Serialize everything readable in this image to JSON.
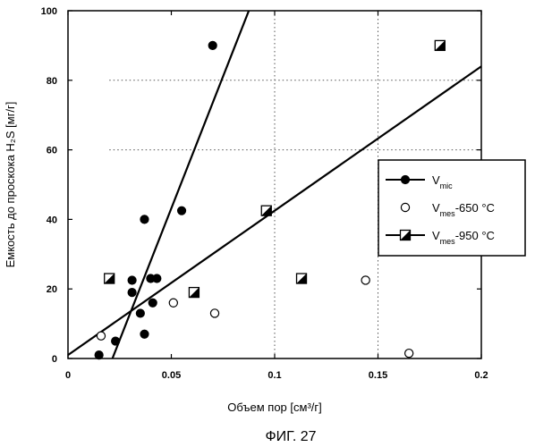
{
  "chart_data": {
    "type": "scatter",
    "xlabel": "Объем пор [см³/г]",
    "ylabel": "Емкость до проскока H₂S [мг/г]",
    "xlim": [
      0,
      0.2
    ],
    "ylim": [
      0,
      100
    ],
    "x_ticks": [
      "0",
      "0.05",
      "0.1",
      "0.15",
      "0.2"
    ],
    "y_ticks": [
      "0",
      "20",
      "40",
      "60",
      "80",
      "100"
    ],
    "grid": "dotted, x=0.1, x=0.15, y=60, y=80",
    "legend_position": "right",
    "legend": {
      "mic": {
        "main": "V",
        "sub": "mic",
        "suffix": ""
      },
      "mes650": {
        "main": "V",
        "sub": "mes",
        "suffix": "-650 °C"
      },
      "mes950": {
        "main": "V",
        "sub": "mes",
        "suffix": "-950 °C"
      }
    },
    "series": [
      {
        "key": "mic",
        "marker": "filled-circle",
        "points": [
          [
            0.015,
            1
          ],
          [
            0.023,
            5
          ],
          [
            0.031,
            22.5
          ],
          [
            0.031,
            19
          ],
          [
            0.035,
            13
          ],
          [
            0.037,
            40
          ],
          [
            0.037,
            7
          ],
          [
            0.04,
            23
          ],
          [
            0.041,
            16
          ],
          [
            0.043,
            23
          ],
          [
            0.055,
            42.5
          ],
          [
            0.07,
            90
          ]
        ],
        "fit_line": [
          [
            0.0215,
            0
          ],
          [
            0.0875,
            100
          ]
        ]
      },
      {
        "key": "mes650",
        "marker": "open-circle",
        "points": [
          [
            0.016,
            6.5
          ],
          [
            0.051,
            16
          ],
          [
            0.071,
            13
          ],
          [
            0.144,
            22.5
          ],
          [
            0.165,
            1.5
          ]
        ]
      },
      {
        "key": "mes950",
        "marker": "half-filled-square",
        "points": [
          [
            0.02,
            23
          ],
          [
            0.061,
            19
          ],
          [
            0.096,
            42.5
          ],
          [
            0.113,
            23
          ],
          [
            0.18,
            90
          ]
        ],
        "fit_line": [
          [
            0,
            1
          ],
          [
            0.2,
            84
          ]
        ]
      }
    ]
  },
  "caption": "ФИГ. 27"
}
